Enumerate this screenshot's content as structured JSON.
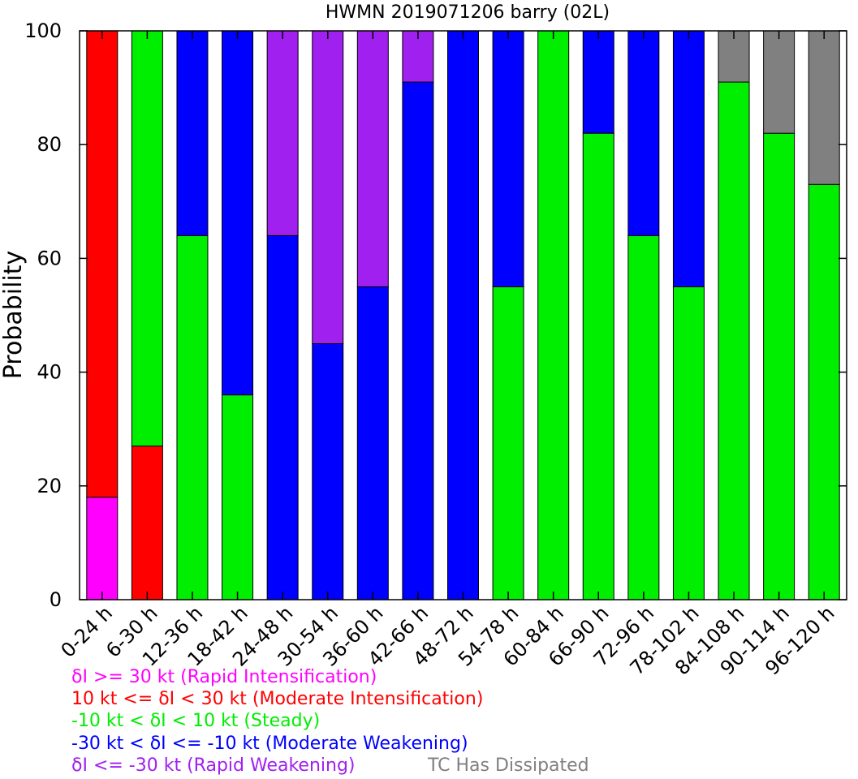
{
  "chart_data": {
    "type": "bar",
    "stacked": true,
    "title": "HWMN 2019071206 barry (02L)",
    "xlabel": "",
    "ylabel": "Probability",
    "ylim": [
      0,
      100
    ],
    "yticks": [
      0,
      20,
      40,
      60,
      80,
      100
    ],
    "grid": false,
    "categories": [
      "0-24 h",
      "6-30 h",
      "12-36 h",
      "18-42 h",
      "24-48 h",
      "30-54 h",
      "36-60 h",
      "42-66 h",
      "48-72 h",
      "54-78 h",
      "60-84 h",
      "66-90 h",
      "72-96 h",
      "78-102 h",
      "84-108 h",
      "90-114 h",
      "96-120 h"
    ],
    "series": [
      {
        "name": "δI >= 30 kt (Rapid Intensification)",
        "color": "#ff00ff",
        "values": [
          18,
          0,
          0,
          0,
          0,
          0,
          0,
          0,
          0,
          0,
          0,
          0,
          0,
          0,
          0,
          0,
          0
        ]
      },
      {
        "name": "10 kt <= δI < 30 kt (Moderate Intensification)",
        "color": "#ff0000",
        "values": [
          82,
          27,
          0,
          0,
          0,
          0,
          0,
          0,
          0,
          0,
          0,
          0,
          0,
          0,
          0,
          0,
          0
        ]
      },
      {
        "name": "-10 kt < δI < 10 kt (Steady)",
        "color": "#00ee00",
        "values": [
          0,
          73,
          64,
          36,
          0,
          0,
          0,
          0,
          0,
          55,
          100,
          82,
          64,
          55,
          91,
          82,
          73
        ]
      },
      {
        "name": "-30 kt < δI <= -10 kt (Moderate Weakening)",
        "color": "#0000ff",
        "values": [
          0,
          0,
          36,
          64,
          64,
          45,
          55,
          91,
          100,
          45,
          0,
          18,
          36,
          45,
          0,
          0,
          0
        ]
      },
      {
        "name": "δI <= -30 kt (Rapid Weakening)",
        "color": "#a020f0",
        "values": [
          0,
          0,
          0,
          0,
          36,
          55,
          45,
          9,
          0,
          0,
          0,
          0,
          0,
          0,
          0,
          0,
          0
        ]
      },
      {
        "name": "TC Has Dissipated",
        "color": "#808080",
        "values": [
          0,
          0,
          0,
          0,
          0,
          0,
          0,
          0,
          0,
          0,
          0,
          0,
          0,
          0,
          9,
          18,
          27
        ]
      }
    ]
  }
}
